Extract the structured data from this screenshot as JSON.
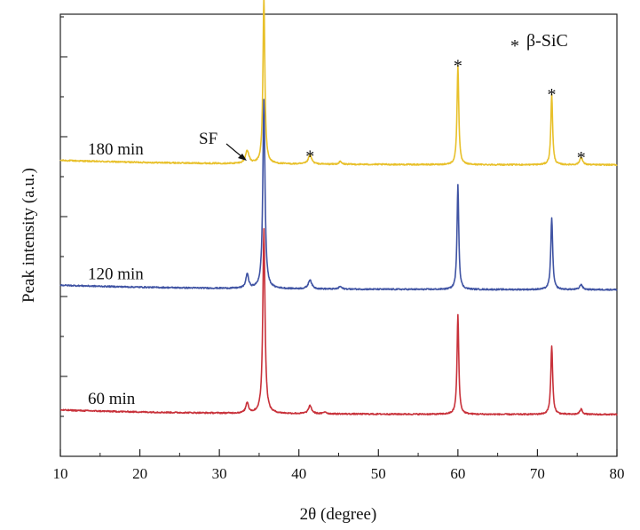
{
  "chart_data": {
    "type": "line",
    "title": "",
    "xlabel": "2θ (degree)",
    "ylabel": "Peak intensity (a.u.)",
    "xlim": [
      10,
      80
    ],
    "x_ticks": [
      "10",
      "20",
      "30",
      "40",
      "50",
      "60",
      "70",
      "80"
    ],
    "y_ticks": "unlabeled",
    "grid": false,
    "legend": {
      "position": "top-right",
      "symbol": "*",
      "label": "β-SiC"
    },
    "annotation": {
      "label": "SF",
      "x": 33.4,
      "series": "180 min"
    },
    "peak_markers": {
      "symbol": "*",
      "series": "180 min",
      "x": [
        35.6,
        41.4,
        60.0,
        71.8,
        75.5
      ]
    },
    "series": [
      {
        "name": "180 min",
        "color": "#e8c02a",
        "baseline": 1.9,
        "peaks": [
          {
            "x": 33.5,
            "height": 0.1,
            "width": 0.25
          },
          {
            "x": 35.6,
            "height": 1.28,
            "width": 0.14
          },
          {
            "x": 41.4,
            "height": 0.07,
            "width": 0.25
          },
          {
            "x": 45.2,
            "height": 0.02,
            "width": 0.2
          },
          {
            "x": 60.0,
            "height": 0.76,
            "width": 0.13
          },
          {
            "x": 71.8,
            "height": 0.54,
            "width": 0.13
          },
          {
            "x": 75.5,
            "height": 0.06,
            "width": 0.2
          }
        ]
      },
      {
        "name": "120 min",
        "color": "#3f53a3",
        "baseline": 0.95,
        "peaks": [
          {
            "x": 33.5,
            "height": 0.11,
            "width": 0.2
          },
          {
            "x": 35.6,
            "height": 1.44,
            "width": 0.16
          },
          {
            "x": 41.4,
            "height": 0.07,
            "width": 0.25
          },
          {
            "x": 45.2,
            "height": 0.02,
            "width": 0.2
          },
          {
            "x": 60.0,
            "height": 0.8,
            "width": 0.13
          },
          {
            "x": 71.8,
            "height": 0.55,
            "width": 0.14
          },
          {
            "x": 75.5,
            "height": 0.04,
            "width": 0.2
          }
        ]
      },
      {
        "name": "60 min",
        "color": "#c8313a",
        "baseline": 0.0,
        "peaks": [
          {
            "x": 33.5,
            "height": 0.08,
            "width": 0.2
          },
          {
            "x": 35.6,
            "height": 1.41,
            "width": 0.16
          },
          {
            "x": 41.4,
            "height": 0.06,
            "width": 0.25
          },
          {
            "x": 43.3,
            "height": 0.015,
            "width": 0.2
          },
          {
            "x": 60.0,
            "height": 0.76,
            "width": 0.13
          },
          {
            "x": 71.8,
            "height": 0.52,
            "width": 0.14
          },
          {
            "x": 75.5,
            "height": 0.04,
            "width": 0.2
          }
        ]
      }
    ]
  }
}
